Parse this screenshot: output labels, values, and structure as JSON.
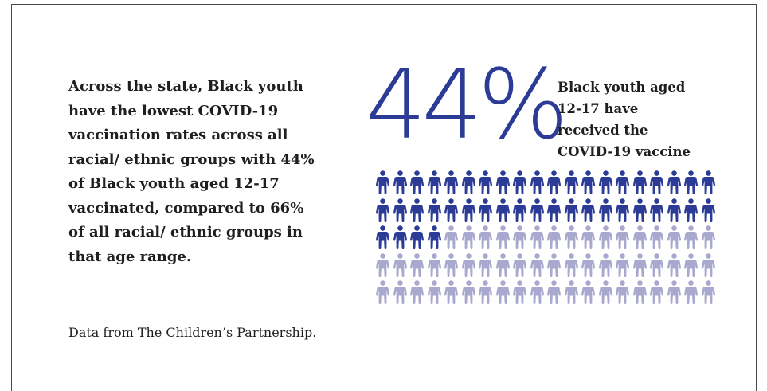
{
  "infographic": {
    "description_lines": [
      "Across the state, Black youth",
      "have the lowest COVID-19",
      "vaccination rates across all",
      "racial/ ethnic groups with 44%",
      "of Black youth aged 12-17",
      "vaccinated, compared to 66%",
      "of all racial/ ethnic groups in",
      "that age range."
    ],
    "source": "Data from The Children’s Partnership.",
    "headline_stat": "44%",
    "stat_caption_lines": [
      "Black youth aged",
      "12-17 have",
      "received the",
      "COVID-19 vaccine"
    ]
  },
  "chart_data": {
    "type": "pictograph",
    "total_icons": 100,
    "highlighted_icons": 44,
    "icons_per_row": 20,
    "rows": 5,
    "highlight_color": "#2b3b96",
    "base_color": "#a9a9cf"
  },
  "colors": {
    "accent": "#2b3b96",
    "muted_icon": "#a9a9cf",
    "text": "#1f1f1f",
    "border": "#4a4a4a"
  },
  "icons": {
    "person": "person-icon"
  }
}
